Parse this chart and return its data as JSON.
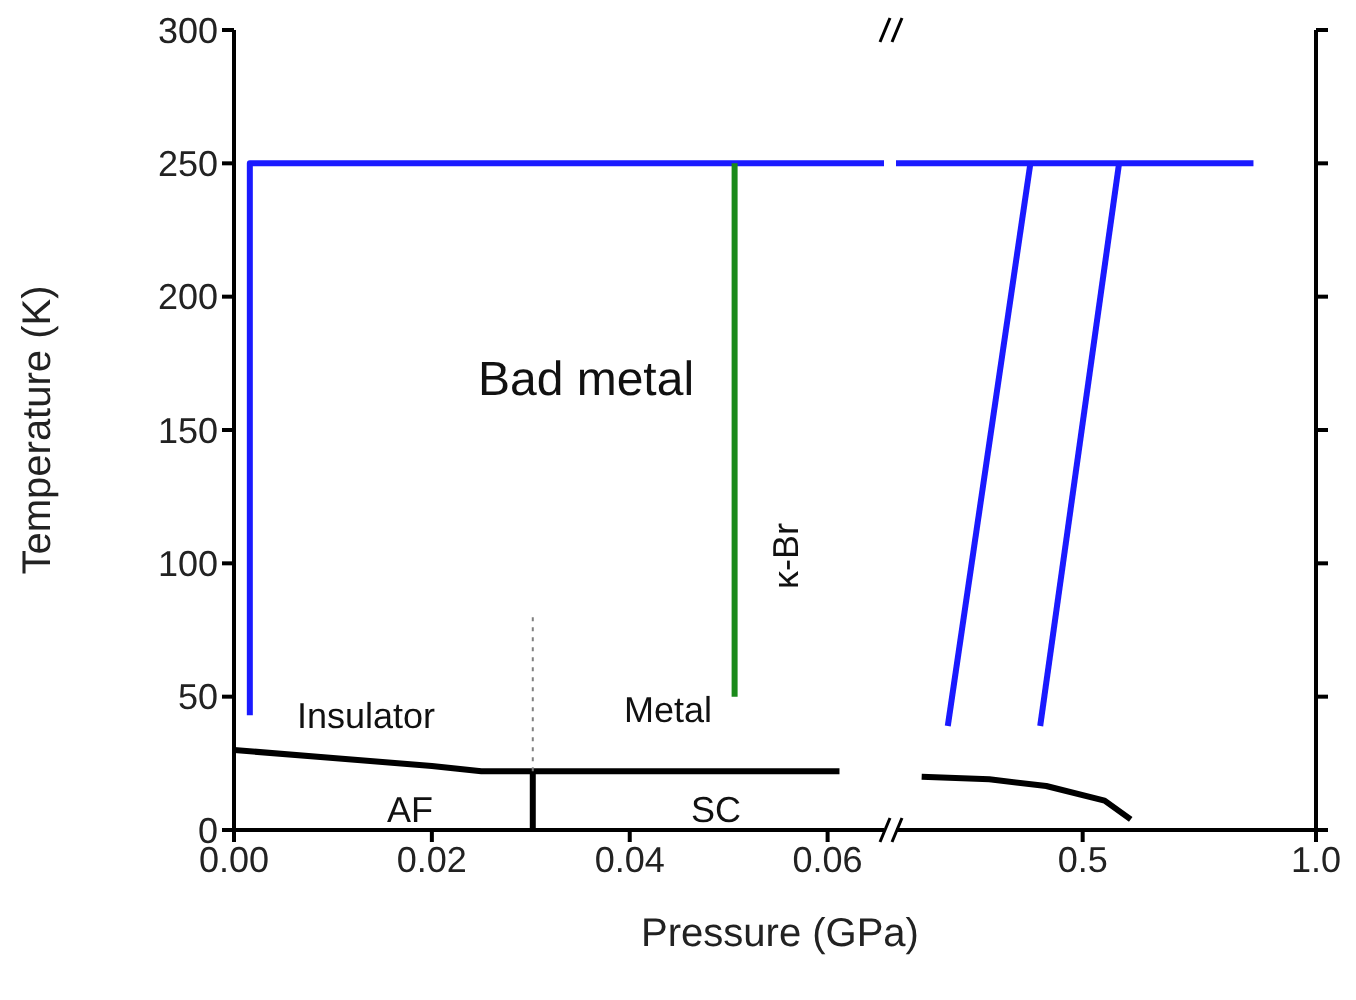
{
  "chart_data": [
    {
      "type": "line",
      "ylabel": "Temperature (K)",
      "xlabel": "Pressure (GPa)",
      "xlim": [
        0,
        0.0657
      ],
      "xticks": [
        {
          "value": 0,
          "label": "0.00"
        },
        {
          "value": 0.02,
          "label": "0.02"
        },
        {
          "value": 0.04,
          "label": "0.04"
        },
        {
          "value": 0.06,
          "label": "0.06"
        }
      ],
      "ylim": [
        0,
        300
      ],
      "yticks": [
        0,
        50,
        100,
        150,
        200,
        250,
        300
      ],
      "marker": "none",
      "series": [
        {
          "color": "#1a1aff",
          "x": [
            0.0016,
            0.0016,
            0.0657
          ],
          "values": [
            43,
            250,
            250
          ],
          "line_style": "solid"
        },
        {
          "color": "#1a8a1a",
          "x": [
            0.0506,
            0.0506
          ],
          "values": [
            50,
            250
          ],
          "line_style": "solid"
        },
        {
          "color": "#000000",
          "x": [
            0,
            0.01,
            0.02,
            0.025,
            0.0612
          ],
          "values": [
            30,
            27,
            24,
            22,
            22
          ],
          "line_style": "solid"
        },
        {
          "color": "#000000",
          "x": [
            0.0302,
            0.0302
          ],
          "values": [
            0,
            22
          ],
          "line_style": "solid"
        },
        {
          "color": "#808080",
          "x": [
            0.0302,
            0.0302
          ],
          "values": [
            22,
            80
          ],
          "line_style": "dotted"
        }
      ],
      "annotations": [
        "Bad metal",
        "Insulator",
        "Metal",
        "AF",
        "SC",
        "κ-Br"
      ]
    },
    {
      "type": "line",
      "xlim": [
        0.1,
        1.0
      ],
      "xticks": [
        {
          "value": 0.5,
          "label": "0.5"
        },
        {
          "value": 1.0,
          "label": "1.0"
        }
      ],
      "ylim": [
        0,
        300
      ],
      "yticks": [
        0,
        50,
        100,
        150,
        200,
        250,
        300
      ],
      "tick_labels": "x",
      "marker": "none",
      "series": [
        {
          "color": "#1a1aff",
          "x": [
            0.1,
            0.866
          ],
          "values": [
            250,
            250
          ],
          "line_style": "solid"
        },
        {
          "color": "#1a1aff",
          "x": [
            0.211,
            0.388
          ],
          "values": [
            39,
            250
          ],
          "line_style": "solid"
        },
        {
          "color": "#1a1aff",
          "x": [
            0.409,
            0.578
          ],
          "values": [
            39,
            250
          ],
          "line_style": "solid"
        },
        {
          "color": "#000000",
          "x": [
            0.155,
            0.3,
            0.422,
            0.547,
            0.603
          ],
          "values": [
            20,
            19,
            16.5,
            11,
            4
          ],
          "line_style": "solid"
        }
      ]
    }
  ]
}
